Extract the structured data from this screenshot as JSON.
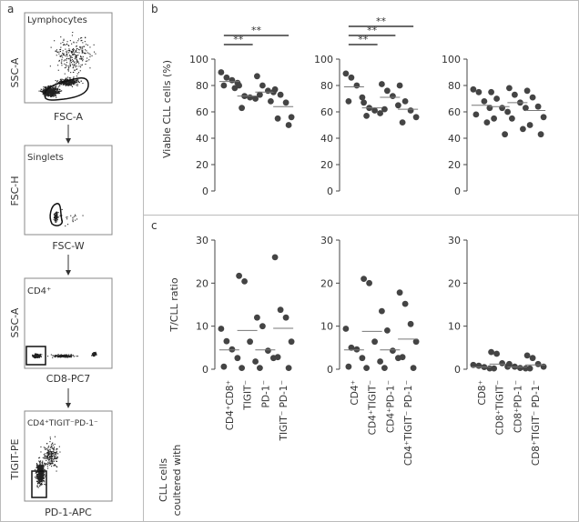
{
  "panel_labels": {
    "a": "a",
    "b": "b",
    "c": "c"
  },
  "flow_panels": [
    {
      "gate": "Lymphocytes",
      "ylabel": "SSC-A",
      "xlabel": "FSC-A"
    },
    {
      "gate": "Singlets",
      "ylabel": "FSC-H",
      "xlabel": "FSC-W"
    },
    {
      "gate": "CD4⁺",
      "ylabel": "SSC-A",
      "xlabel": "CD8-PC7"
    },
    {
      "gate": "CD4⁺TIGIT⁻PD-1⁻",
      "ylabel": "TIGIT-PE",
      "xlabel": "PD-1-APC"
    }
  ],
  "row_b_ylabel": "Viable CLL cells (%)",
  "row_c_ylabel": "T/CLL ratio",
  "row_c_xtitle_line1": "CLL cells",
  "row_c_xtitle_line2": "coultered with",
  "chart_data": [
    {
      "panel": "b1",
      "type": "scatter",
      "ylim": [
        0,
        100
      ],
      "yticks": [
        0,
        20,
        40,
        60,
        80,
        100
      ],
      "categories": [],
      "means": [
        83,
        72,
        75,
        64
      ],
      "values": [
        [
          90,
          86,
          84,
          82,
          80,
          78
        ],
        [
          80,
          72,
          71,
          70,
          63
        ],
        [
          87,
          80,
          76,
          75,
          73,
          68
        ],
        [
          77,
          73,
          67,
          56,
          55,
          50
        ]
      ],
      "significance": [
        {
          "from": 0,
          "to": 1,
          "label": "**"
        },
        {
          "from": 0,
          "to": 3,
          "label": "**"
        }
      ]
    },
    {
      "panel": "b2",
      "type": "scatter",
      "ylim": [
        0,
        100
      ],
      "yticks": [
        0,
        20,
        40,
        60,
        80,
        100
      ],
      "categories": [],
      "means": [
        79,
        63,
        71,
        62
      ],
      "values": [
        [
          89,
          86,
          80,
          71,
          68
        ],
        [
          67,
          63,
          61,
          59,
          57
        ],
        [
          81,
          76,
          72,
          65,
          62
        ],
        [
          80,
          68,
          61,
          56,
          52
        ]
      ],
      "significance": [
        {
          "from": 0,
          "to": 1,
          "label": "**"
        },
        {
          "from": 0,
          "to": 2,
          "label": "**"
        },
        {
          "from": 0,
          "to": 3,
          "label": "**"
        }
      ]
    },
    {
      "panel": "b3",
      "type": "scatter",
      "ylim": [
        0,
        100
      ],
      "yticks": [
        0,
        20,
        40,
        60,
        80,
        100
      ],
      "categories": [],
      "means": [
        65,
        64,
        67,
        61
      ],
      "values": [
        [
          77,
          75,
          68,
          63,
          58,
          52
        ],
        [
          75,
          70,
          63,
          60,
          55,
          43
        ],
        [
          78,
          73,
          67,
          63,
          55,
          47
        ],
        [
          76,
          71,
          64,
          56,
          50,
          43
        ]
      ],
      "significance": []
    },
    {
      "panel": "c1",
      "type": "scatter",
      "ylim": [
        0,
        30
      ],
      "yticks": [
        0,
        10,
        20,
        30
      ],
      "categories": [
        "CD4⁺CD8⁺",
        "TIGIT⁻",
        "PD-1⁻",
        "TIGIT⁻ PD-1⁻"
      ],
      "means": [
        4.5,
        9,
        4.5,
        9.5
      ],
      "values": [
        [
          9.4,
          6.5,
          4.6,
          2.6,
          0.6
        ],
        [
          21.7,
          20.4,
          6.4,
          1.8,
          0.3
        ],
        [
          12,
          10,
          4.3,
          2.6,
          0.3
        ],
        [
          26,
          13.8,
          12,
          6.4,
          2.8,
          0.3
        ]
      ],
      "significance": []
    },
    {
      "panel": "c2",
      "type": "scatter",
      "ylim": [
        0,
        30
      ],
      "yticks": [
        0,
        10,
        20,
        30
      ],
      "categories": [
        "CD4⁺",
        "CD4⁺TIGIT⁻",
        "CD4⁺PD-1⁻",
        "CD4⁺TIGIT⁻ PD-1⁻"
      ],
      "means": [
        4.5,
        8.8,
        4.5,
        7
      ],
      "values": [
        [
          9.4,
          5,
          4.6,
          2.6,
          0.6
        ],
        [
          21,
          20,
          6.4,
          1.8,
          0.3
        ],
        [
          13.5,
          9,
          4.3,
          2.6,
          0.3
        ],
        [
          17.8,
          15.2,
          10.5,
          6.4,
          2.8,
          0.3
        ]
      ],
      "significance": []
    },
    {
      "panel": "c3",
      "type": "scatter",
      "ylim": [
        0,
        30
      ],
      "yticks": [
        0,
        10,
        20,
        30
      ],
      "categories": [
        "CD8⁺",
        "CD8⁺TIGIT⁻",
        "CD8⁺PD-1⁻",
        "CD8⁺TIGIT⁻ PD-1⁻"
      ],
      "means": [
        0.5,
        1.2,
        0.5,
        1
      ],
      "values": [
        [
          1,
          0.8,
          0.5,
          0.2
        ],
        [
          4,
          3.6,
          1.4,
          0.6,
          0.2
        ],
        [
          1.2,
          0.6,
          0.3,
          0.2
        ],
        [
          3.2,
          2.6,
          1.2,
          0.6,
          0.2
        ]
      ],
      "significance": []
    }
  ]
}
